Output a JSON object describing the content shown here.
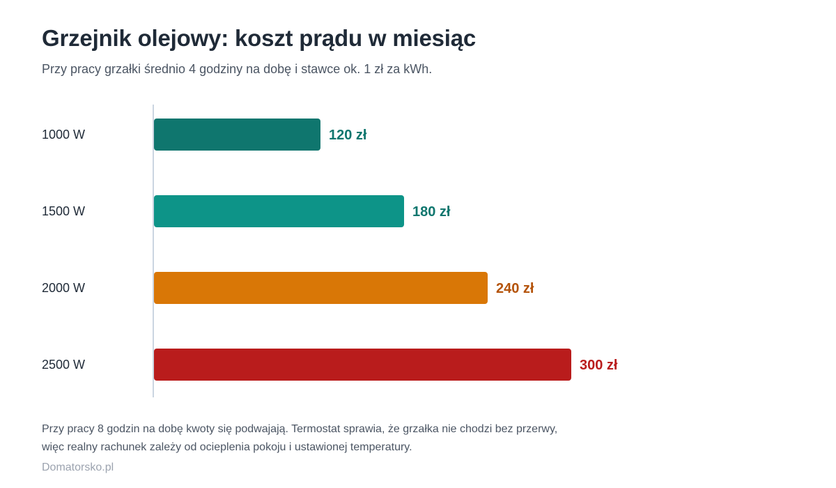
{
  "title": "Grzejnik olejowy: koszt prądu w miesiąc",
  "subtitle": "Przy pracy grzałki średnio 4 godziny na dobę i stawce ok. 1 zł za kWh.",
  "footnote": {
    "line1": "Przy pracy 8 godzin na dobę kwoty się podwajają. Termostat sprawia, że grzałka nie chodzi bez przerwy,",
    "line2": "więc realny rachunek zależy od ocieplenia pokoju i ustawionej temperatury."
  },
  "source": "Domatorsko.pl",
  "chart_data": {
    "type": "bar",
    "orientation": "horizontal",
    "categories": [
      "1000 W",
      "1500 W",
      "2000 W",
      "2500 W"
    ],
    "values": [
      120,
      180,
      240,
      300
    ],
    "value_labels": [
      "120 zł",
      "180 zł",
      "240 zł",
      "300 zł"
    ],
    "bar_colors": [
      "#0f766e",
      "#0d9488",
      "#d97706",
      "#b91c1c"
    ],
    "label_colors": [
      "#0f766e",
      "#0f766e",
      "#b45309",
      "#b91c1c"
    ],
    "axis_color": "#cbd5e1",
    "category_label_color": "#1f2a37",
    "xlim": [
      0,
      300
    ],
    "grid": false,
    "legend": "none"
  }
}
